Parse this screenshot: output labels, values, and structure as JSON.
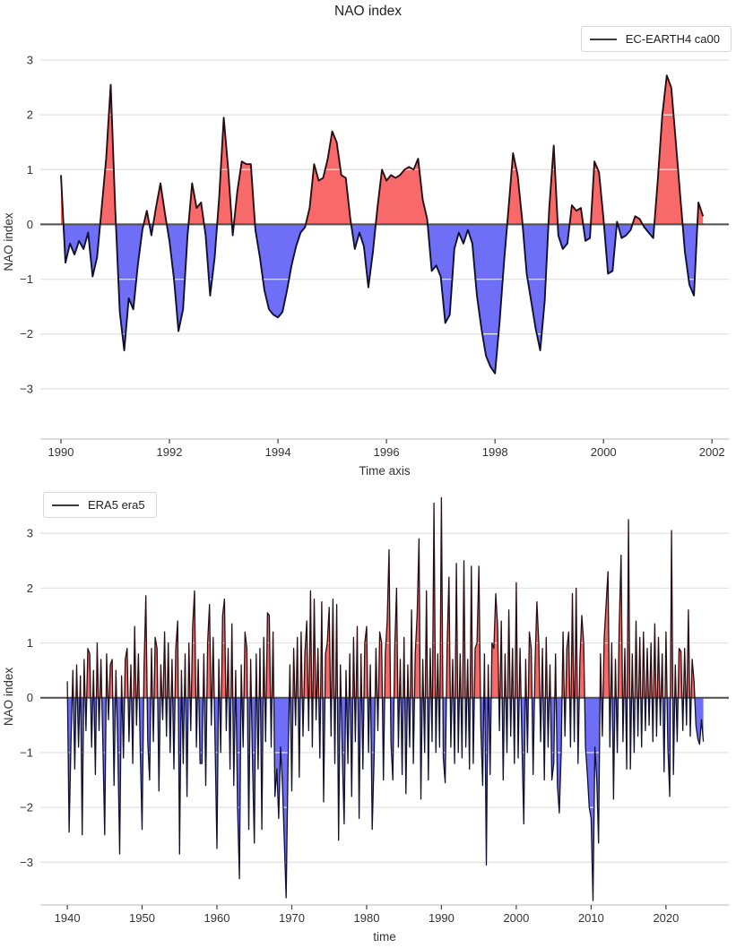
{
  "title": "NAO index",
  "colors": {
    "positive_fill": "#f86a6a",
    "negative_fill": "#6e6ef6",
    "line_positive": "#2a0d11",
    "line_negative": "#10102f",
    "zero_line": "#4d4d4d",
    "grid": "#e3e3e3",
    "axis_line": "#c8c8c8",
    "tick_mark": "#444444",
    "text": "#333333"
  },
  "chart_data": [
    {
      "type": "area",
      "series_name": "EC-EARTH4 ca00",
      "legend_position": "top-right",
      "xlabel": "Time axis",
      "ylabel": "NAO index",
      "x_start": 1990.0,
      "x_step": 0.0833333,
      "xticks": [
        1990,
        1992,
        1994,
        1996,
        1998,
        2000,
        2002
      ],
      "yticks": [
        3,
        2,
        1,
        0,
        -1,
        -2,
        -3
      ],
      "xlim": [
        1989.62,
        2002.31
      ],
      "ylim": [
        -3.92,
        3.28
      ],
      "grid": true,
      "values": [
        0.9,
        -0.7,
        -0.35,
        -0.55,
        -0.3,
        -0.45,
        -0.15,
        -0.95,
        -0.6,
        0.3,
        1.2,
        2.55,
        0.3,
        -1.6,
        -2.3,
        -1.35,
        -1.55,
        -0.75,
        -0.1,
        0.25,
        -0.2,
        0.3,
        0.75,
        0.2,
        -0.3,
        -1.0,
        -1.95,
        -1.55,
        -0.2,
        0.75,
        0.3,
        0.4,
        -0.2,
        -1.3,
        -0.6,
        0.5,
        1.95,
        1.0,
        -0.2,
        0.6,
        1.15,
        1.1,
        1.1,
        -0.1,
        -0.6,
        -1.2,
        -1.55,
        -1.65,
        -1.7,
        -1.6,
        -1.2,
        -0.75,
        -0.4,
        -0.15,
        -0.05,
        0.3,
        1.1,
        0.8,
        0.85,
        1.2,
        1.7,
        1.5,
        0.9,
        0.85,
        0.1,
        -0.45,
        -0.15,
        -0.4,
        -1.15,
        -0.5,
        0.3,
        1.0,
        0.8,
        0.9,
        0.85,
        0.9,
        1.0,
        1.05,
        1.0,
        1.2,
        0.45,
        0.1,
        -0.85,
        -0.75,
        -0.95,
        -1.8,
        -1.65,
        -0.45,
        -0.15,
        -0.35,
        -0.1,
        -0.35,
        -1.3,
        -1.9,
        -2.4,
        -2.6,
        -2.72,
        -1.8,
        -0.7,
        0.3,
        1.3,
        0.9,
        0.1,
        -0.9,
        -1.4,
        -1.9,
        -2.3,
        -1.4,
        0.3,
        1.44,
        -0.2,
        -0.45,
        -0.35,
        0.35,
        0.25,
        0.3,
        -0.3,
        -0.25,
        1.15,
        0.95,
        0.1,
        -0.9,
        -0.85,
        0.05,
        -0.25,
        -0.2,
        -0.1,
        0.15,
        0.1,
        -0.05,
        -0.15,
        -0.25,
        0.8,
        2.0,
        2.72,
        2.5,
        1.5,
        0.5,
        -0.5,
        -1.1,
        -1.3,
        0.4,
        0.15
      ]
    },
    {
      "type": "area",
      "series_name": "ERA5 era5",
      "legend_position": "top-left",
      "xlabel": "time",
      "ylabel": "NAO index",
      "x_start": 1940.0,
      "x_step": 0.25,
      "xticks": [
        1940,
        1950,
        1960,
        1970,
        1980,
        1990,
        2000,
        2010,
        2020
      ],
      "yticks": [
        3,
        2,
        1,
        0,
        -1,
        -2,
        -3
      ],
      "xlim": [
        1936.4,
        2028.4
      ],
      "ylim": [
        -3.78,
        3.82
      ],
      "grid": true,
      "values": [
        0.3,
        -2.45,
        -0.8,
        0.5,
        -1.3,
        0.6,
        -0.9,
        0.4,
        -2.5,
        0.7,
        -0.6,
        0.9,
        0.8,
        -0.9,
        0.5,
        -1.4,
        1.0,
        -0.6,
        0.7,
        -0.8,
        -2.5,
        0.8,
        -0.4,
        0.6,
        0.7,
        -1.6,
        0.5,
        -0.9,
        -2.85,
        0.4,
        -1.1,
        0.7,
        0.9,
        -0.8,
        0.6,
        -1.2,
        1.3,
        -0.5,
        0.8,
        -0.9,
        -2.4,
        0.5,
        1.86,
        -0.8,
        -1.5,
        0.9,
        -0.8,
        1.1,
        0.9,
        -1.7,
        0.6,
        -0.4,
        1.2,
        -0.7,
        1.0,
        -1.0,
        0.7,
        -1.3,
        0.9,
        1.4,
        -2.85,
        0.5,
        -1.2,
        0.8,
        -1.8,
        1.0,
        -0.6,
        1.3,
        1.95,
        -0.9,
        0.7,
        -1.2,
        -1.2,
        0.8,
        -1.6,
        1.0,
        1.7,
        -0.5,
        1.1,
        -0.8,
        -2.75,
        0.7,
        -1.0,
        1.5,
        1.8,
        -0.6,
        0.9,
        -1.3,
        1.35,
        -1.6,
        0.5,
        -2.0,
        -3.3,
        0.6,
        -0.9,
        1.2,
        0.9,
        -2.4,
        0.7,
        -1.2,
        -2.65,
        0.8,
        -1.3,
        0.9,
        -2.4,
        1.1,
        -0.8,
        1.55,
        1.5,
        -0.9,
        1.2,
        -1.8,
        -1.3,
        -2.2,
        -0.9,
        -1.6,
        -2.6,
        -3.65,
        -1.2,
        0.6,
        -1.7,
        0.9,
        -0.5,
        1.1,
        -1.45,
        1.2,
        -0.7,
        0.8,
        1.4,
        -0.6,
        1.95,
        -0.9,
        1.8,
        -0.4,
        0.9,
        -1.1,
        1.75,
        -1.9,
        0.8,
        1.0,
        1.65,
        -0.7,
        1.8,
        -1.2,
        1.7,
        -2.6,
        0.6,
        -1.0,
        -2.3,
        0.5,
        -1.2,
        0.8,
        -1.8,
        1.1,
        -0.8,
        1.3,
        -2.2,
        0.8,
        -1.3,
        1.0,
        1.3,
        -1.0,
        0.6,
        -2.4,
        -1.1,
        0.9,
        -0.6,
        1.2,
        1.0,
        -1.5,
        0.8,
        1.4,
        2.7,
        -0.8,
        -1.5,
        0.9,
        2.0,
        -0.9,
        0.7,
        -1.4,
        1.1,
        -1.75,
        0.6,
        -0.9,
        1.6,
        -1.2,
        0.8,
        1.5,
        2.9,
        -1.85,
        0.7,
        -1.0,
        1.95,
        -1.5,
        0.9,
        -0.8,
        3.55,
        -1.0,
        0.8,
        -0.9,
        3.65,
        -1.1,
        -1.55,
        0.9,
        2.2,
        -0.9,
        0.7,
        -1.2,
        2.45,
        -1.0,
        0.8,
        -1.1,
        2.5,
        -0.9,
        0.7,
        -1.3,
        2.4,
        -1.2,
        0.9,
        1.0,
        2.4,
        -0.5,
        -1.6,
        0.8,
        -3.05,
        0.6,
        -1.4,
        1.0,
        0.9,
        1.9,
        1.3,
        -0.6,
        1.4,
        -1.5,
        0.8,
        -1.0,
        1.6,
        -0.7,
        0.9,
        -1.2,
        2.1,
        -1.1,
        0.9,
        -0.8,
        -2.3,
        0.7,
        -1.0,
        1.2,
        0.9,
        -1.4,
        0.6,
        1.75,
        1.0,
        -0.8,
        0.9,
        -1.5,
        1.1,
        -0.9,
        0.6,
        -1.5,
        -1.2,
        0.8,
        -1.6,
        -2.1,
        -1.0,
        1.2,
        -0.7,
        0.9,
        1.2,
        -0.9,
        1.9,
        -0.8,
        2.0,
        -1.2,
        0.7,
        1.5,
        1.0,
        -0.9,
        -1.4,
        -2.0,
        -2.2,
        -3.7,
        -0.9,
        -1.5,
        -2.65,
        0.8,
        -0.7,
        1.1,
        1.7,
        2.3,
        -0.9,
        1.0,
        -1.85,
        0.7,
        -1.0,
        1.3,
        2.6,
        -0.8,
        0.9,
        -1.3,
        3.25,
        -1.3,
        0.8,
        -1.0,
        1.4,
        -0.7,
        1.1,
        -0.9,
        1.2,
        -0.6,
        0.9,
        -0.5,
        1.0,
        -0.8,
        1.35,
        -0.7,
        1.1,
        -0.5,
        0.8,
        -1.35,
        1.2,
        -0.9,
        -1.8,
        3.05,
        -1.4,
        0.6,
        -0.8,
        0.9,
        0.85,
        -0.6,
        0.9,
        -0.5,
        1.6,
        -0.7,
        0.7,
        0.3,
        -0.5,
        -0.75,
        -0.85,
        -0.4,
        -0.8
      ]
    }
  ]
}
